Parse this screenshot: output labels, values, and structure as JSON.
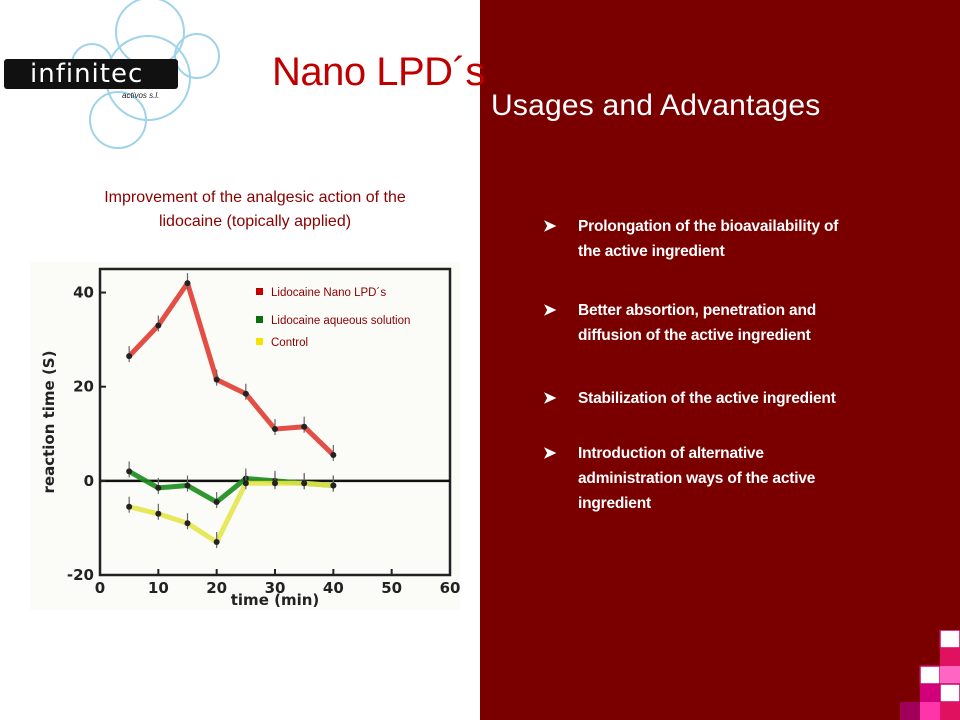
{
  "logo": {
    "name": "infinitec",
    "tagline": "activos s.l."
  },
  "title": "Nano LPD´s",
  "subtitle": "Usages and Advantages",
  "caption_line1": "Improvement of the analgesic action of the",
  "caption_line2": "lidocaine (topically applied)",
  "bullets": [
    {
      "line1": "Prolongation of the  bioavailability of",
      "line2": "the active ingredient",
      "line3": ""
    },
    {
      "line1": "Better absortion, penetration and",
      "line2": "diffusion of the active ingredient",
      "line3": ""
    },
    {
      "line1": "Stabilization of the active ingredient",
      "line2": "",
      "line3": ""
    },
    {
      "line1": "Introduction of alternative",
      "line2": "administration ways  of the active",
      "line3": "ingredient"
    }
  ],
  "chart_data": {
    "type": "line",
    "xlabel": "time (min)",
    "ylabel": "reaction time (S)",
    "xlim": [
      0,
      60
    ],
    "ylim": [
      -20,
      45
    ],
    "xticks": [
      0,
      10,
      20,
      30,
      40,
      50,
      60
    ],
    "yticks": [
      -20,
      0,
      20,
      40
    ],
    "series": [
      {
        "name": "Lidocaine Nano LPD´s",
        "color": "#e03c31",
        "x": [
          5,
          10,
          15,
          20,
          25,
          30,
          35,
          40
        ],
        "y": [
          26.5,
          33,
          42,
          21.5,
          18.5,
          11,
          11.5,
          5.5
        ]
      },
      {
        "name": "Lidocaine aqueous solution",
        "color": "#1a8c1a",
        "x": [
          5,
          10,
          15,
          20,
          25,
          30,
          35,
          40
        ],
        "y": [
          2,
          -1.5,
          -1,
          -4.5,
          0.5,
          0,
          -0.5,
          -1
        ]
      },
      {
        "name": "Control",
        "color": "#e6e64a",
        "x": [
          5,
          10,
          15,
          20,
          25,
          30,
          35,
          40
        ],
        "y": [
          -5.5,
          -7,
          -9,
          -13,
          -0.5,
          -0.5,
          -0.5,
          -1
        ]
      }
    ]
  },
  "colors": {
    "panel": "#7a0000",
    "title": "#c00000"
  }
}
